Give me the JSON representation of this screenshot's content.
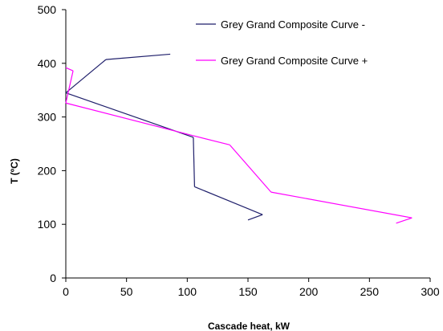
{
  "chart_data": {
    "type": "line",
    "title": "",
    "xlabel": "Cascade heat, kW",
    "ylabel": "T (ºC)",
    "xlim": [
      0,
      300
    ],
    "ylim": [
      0,
      500
    ],
    "x_ticks": [
      "0",
      "50",
      "100",
      "150",
      "200",
      "250",
      "300"
    ],
    "y_ticks": [
      "0",
      "100",
      "200",
      "300",
      "400",
      "500"
    ],
    "grid": false,
    "legend_position": "top-right",
    "series": [
      {
        "name": "Grey Grand Composite Curve -",
        "color": "#1f1f6b",
        "points": [
          {
            "x": 86,
            "y": 417
          },
          {
            "x": 33,
            "y": 407
          },
          {
            "x": 0,
            "y": 345
          },
          {
            "x": 105,
            "y": 262
          },
          {
            "x": 106,
            "y": 170
          },
          {
            "x": 162,
            "y": 118
          },
          {
            "x": 150,
            "y": 108
          }
        ]
      },
      {
        "name": "Grey Grand Composite Curve +",
        "color": "#ff00ff",
        "points": [
          {
            "x": 0,
            "y": 392
          },
          {
            "x": 6,
            "y": 386
          },
          {
            "x": 0,
            "y": 326
          },
          {
            "x": 105,
            "y": 265
          },
          {
            "x": 135,
            "y": 248
          },
          {
            "x": 169,
            "y": 160
          },
          {
            "x": 285,
            "y": 112
          },
          {
            "x": 272,
            "y": 102
          }
        ]
      }
    ]
  }
}
